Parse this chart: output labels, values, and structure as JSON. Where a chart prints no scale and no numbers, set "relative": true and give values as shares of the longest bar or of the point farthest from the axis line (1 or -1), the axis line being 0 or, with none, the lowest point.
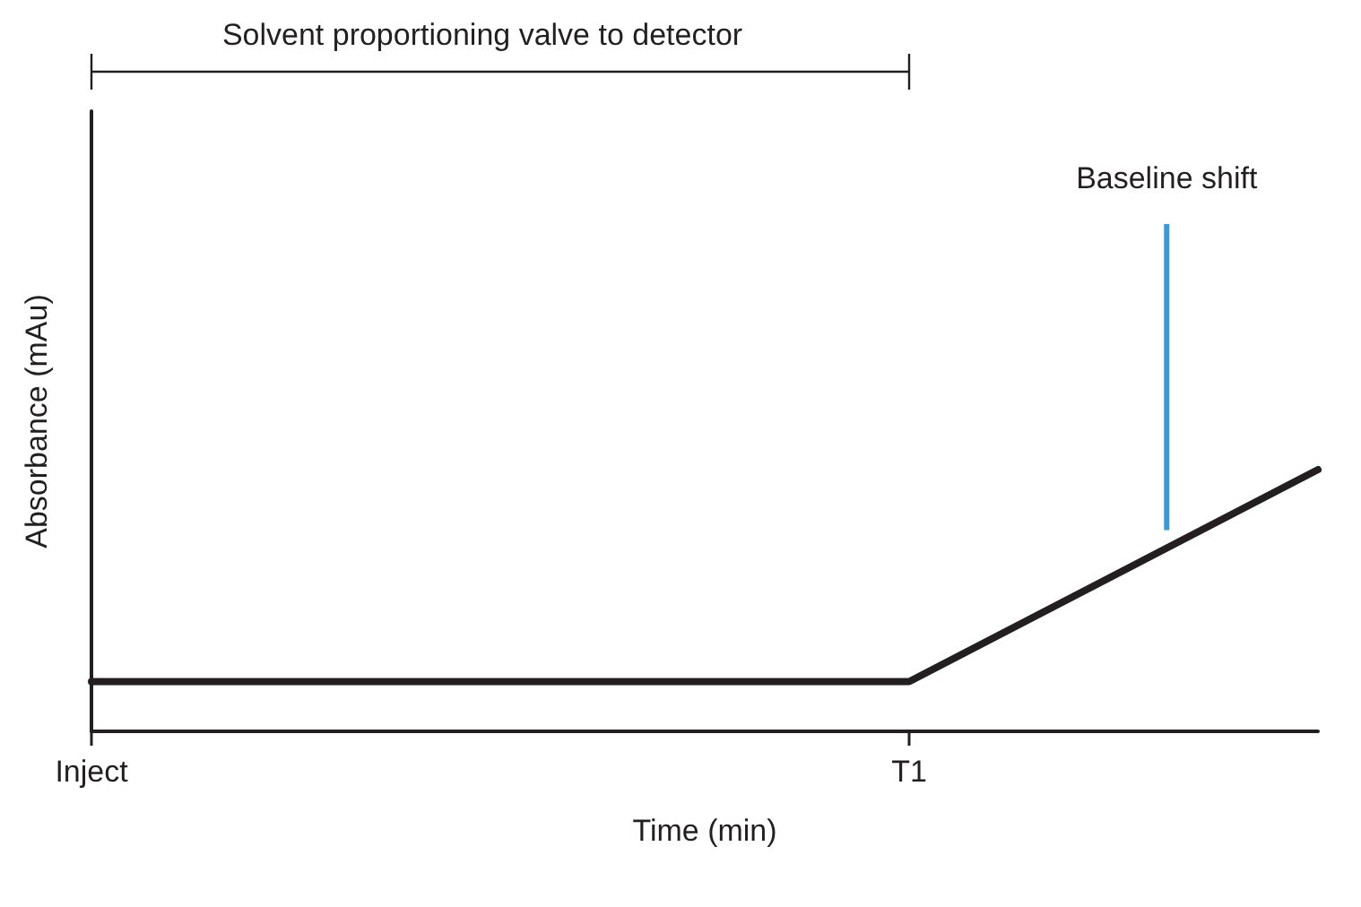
{
  "chart_data": {
    "type": "line",
    "relative": true,
    "xlabel": "Time (min)",
    "ylabel": "Absorbance (mAu)",
    "categories": [
      "Inject",
      null,
      "T1",
      null
    ],
    "series": [
      {
        "color": "#231f20",
        "values": [
          0.19,
          0.19,
          0.19,
          1
        ]
      }
    ],
    "annotations": [
      "Solvent proportioning valve to detector",
      "Baseline shift"
    ],
    "marker": "none",
    "line_style": "solid",
    "grid": false
  }
}
